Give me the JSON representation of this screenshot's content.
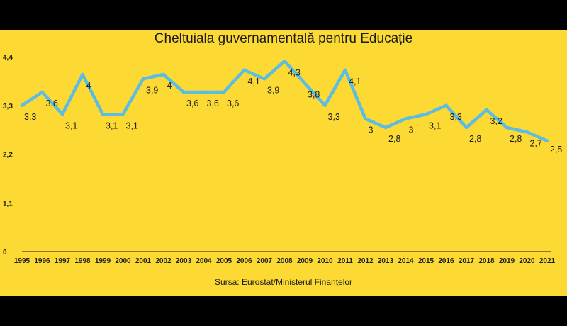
{
  "chart_data": {
    "type": "line",
    "title": "Cheltuiala guvernamentală pentru Educație",
    "source": "Sursa: Eurostat/Ministerul Finanțelor",
    "x": [
      "1995",
      "1996",
      "1997",
      "1998",
      "1999",
      "2000",
      "2001",
      "2002",
      "2003",
      "2004",
      "2005",
      "2006",
      "2007",
      "2008",
      "2009",
      "2010",
      "2011",
      "2012",
      "2013",
      "2014",
      "2015",
      "2016",
      "2017",
      "2018",
      "2019",
      "2020",
      "2021"
    ],
    "series": [
      {
        "values": [
          3.3,
          3.6,
          3.1,
          4,
          3.1,
          3.1,
          3.9,
          4,
          3.6,
          3.6,
          3.6,
          4.1,
          3.9,
          4.3,
          3.8,
          3.3,
          4.1,
          3,
          2.8,
          3,
          3.1,
          3.3,
          2.8,
          3.2,
          2.8,
          2.7,
          2.5
        ],
        "labels": [
          "3,3",
          "3,6",
          "3,1",
          "4",
          "3,1",
          "3,1",
          "3,9",
          "4",
          "3,6",
          "3,6",
          "3,6",
          "4,1",
          "3,9",
          "4,3",
          "3,8",
          "3,3",
          "4,1",
          "3",
          "2,8",
          "3",
          "3,1",
          "3,3",
          "2,8",
          "3,2",
          "2,8",
          "2,7",
          "2,5"
        ],
        "color": "#5bbde3"
      }
    ],
    "ylim": [
      0,
      4.4
    ],
    "yticks": [
      "0",
      "1,1",
      "2,2",
      "3,3",
      "4,4"
    ],
    "grid": false,
    "xlabel": "",
    "ylabel": ""
  }
}
